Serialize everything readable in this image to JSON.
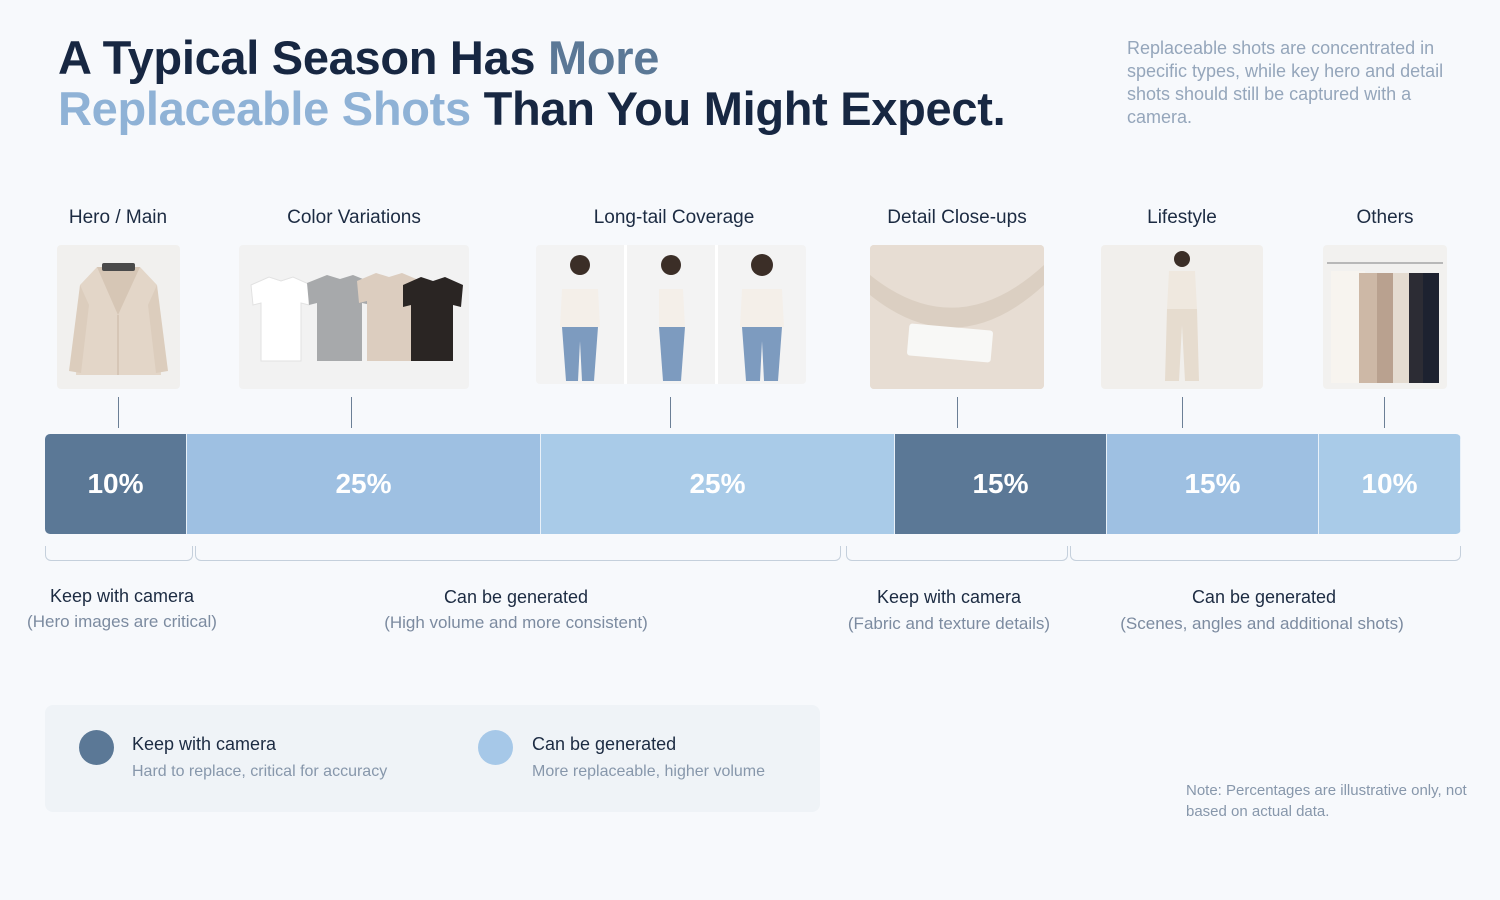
{
  "header": {
    "title_part1": "A Typical Season Has ",
    "title_more": "More",
    "title_replaceable": "Replaceable Shots",
    "title_part2": " Than You Might Expect.",
    "subtitle": "Replaceable shots are concentrated in specific types, while key hero and detail shots should still be captured with a camera."
  },
  "colors": {
    "keep": "#5b7896",
    "generate": "#9ec0e2",
    "generate_light": "#a9cbe8",
    "title_dark": "#172742"
  },
  "chart_data": {
    "type": "bar",
    "orientation": "horizontal-stacked",
    "categories": [
      "Hero / Main",
      "Color Variations",
      "Long-tail Coverage",
      "Detail Close-ups",
      "Lifestyle",
      "Others"
    ],
    "values": [
      10,
      25,
      25,
      15,
      15,
      10
    ],
    "value_labels": [
      "10%",
      "25%",
      "25%",
      "15%",
      "15%",
      "10%"
    ],
    "groups": [
      "keep",
      "generate",
      "generate",
      "keep",
      "generate",
      "generate"
    ],
    "title": "",
    "xlabel": "",
    "ylabel": ""
  },
  "annotations": [
    {
      "title": "Keep with camera",
      "subtitle": "(Hero images are critical)"
    },
    {
      "title": "Can be generated",
      "subtitle": "(High volume and more consistent)"
    },
    {
      "title": "Keep with camera",
      "subtitle": "(Fabric and texture details)"
    },
    {
      "title": "Can be generated",
      "subtitle": "(Scenes, angles and additional shots)"
    }
  ],
  "thumbnails": [
    {
      "icon": "blazer-photo"
    },
    {
      "icon": "tshirt-colors-photo"
    },
    {
      "icon": "model-three-angles-photo"
    },
    {
      "icon": "fabric-closeup-photo"
    },
    {
      "icon": "lifestyle-model-photo"
    },
    {
      "icon": "clothing-rack-photo"
    }
  ],
  "legend": [
    {
      "title": "Keep with camera",
      "subtitle": "Hard to replace, critical for accuracy"
    },
    {
      "title": "Can be generated",
      "subtitle": "More replaceable, higher volume"
    }
  ],
  "note": "Note: Percentages are illustrative only, not based on actual data."
}
